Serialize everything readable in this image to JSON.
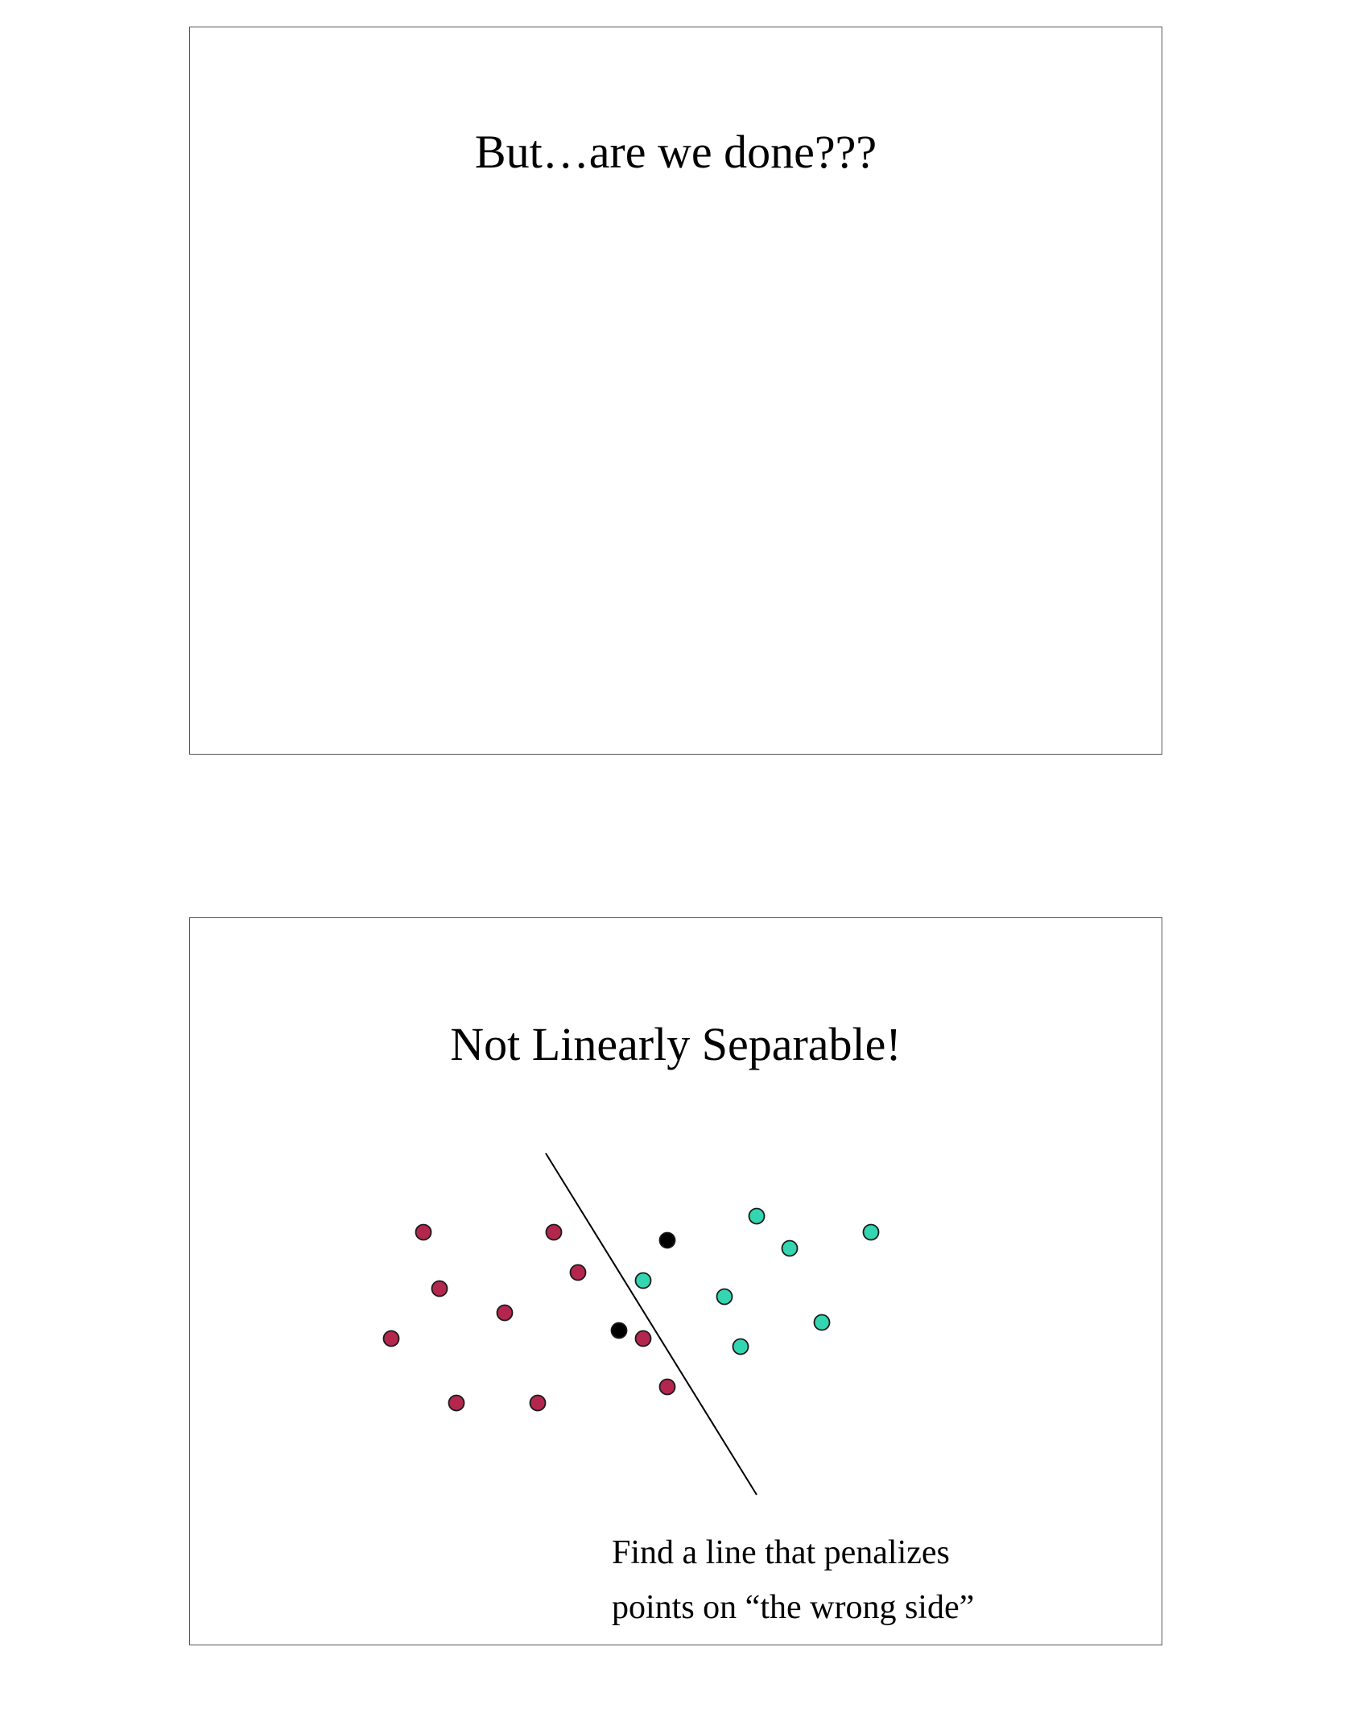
{
  "slides": [
    {
      "title": "But…are we done???"
    },
    {
      "title": "Not Linearly Separable!",
      "caption": {
        "line1": "Find a line that penalizes",
        "line2": "points on “the wrong side”"
      }
    }
  ],
  "colors": {
    "class_a": "#b3274f",
    "class_b": "#33d6b0",
    "highlight": "#000000",
    "outline": "#1a1a1a",
    "line": "#000000"
  }
}
